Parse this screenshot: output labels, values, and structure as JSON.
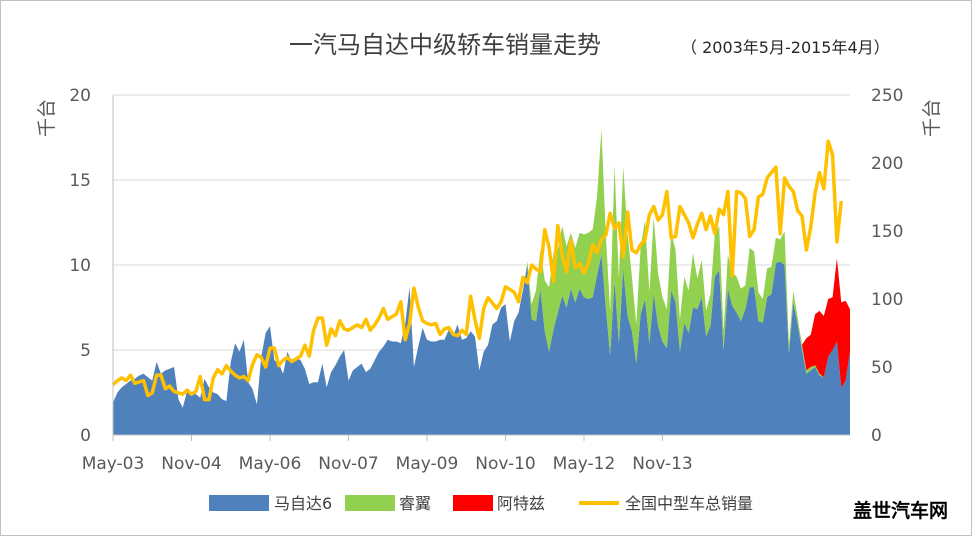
{
  "chart_data": {
    "type": "area",
    "title": "一汽马自达中级轿车销量走势",
    "subtitle": "（ 2003年5月-2015年4月）",
    "left_axis": {
      "unit": "千台",
      "ticks": [
        "0",
        "5",
        "10",
        "15",
        "20"
      ],
      "range": [
        0,
        20
      ]
    },
    "right_axis": {
      "unit": "千台",
      "ticks": [
        "0",
        "50",
        "100",
        "150",
        "200",
        "250"
      ],
      "range": [
        0,
        250
      ]
    },
    "x_labels": [
      "May-03",
      "Nov-04",
      "May-06",
      "Nov-07",
      "May-09",
      "Nov-10",
      "May-12",
      "Nov-13"
    ],
    "grid": true,
    "legend_position": "bottom",
    "series": [
      {
        "name": "马自达6",
        "chart": "stacked-area",
        "axis": "left",
        "color": "#4f81bd",
        "values": [
          1.9,
          2.5,
          2.8,
          3.0,
          3.2,
          3.3,
          3.5,
          3.6,
          3.4,
          3.2,
          4.3,
          3.6,
          3.8,
          3.9,
          4.0,
          2.1,
          1.6,
          2.6,
          2.5,
          2.4,
          2.2,
          3.3,
          2.8,
          2.5,
          2.4,
          2.1,
          2.0,
          4.3,
          5.4,
          4.9,
          5.6,
          3.1,
          2.7,
          1.8,
          4.6,
          6.0,
          6.4,
          4.4,
          4.2,
          3.6,
          4.9,
          4.3,
          4.6,
          4.4,
          3.9,
          3.0,
          3.1,
          3.1,
          4.2,
          2.8,
          3.7,
          4.1,
          4.6,
          5.0,
          3.2,
          3.8,
          4.0,
          4.2,
          3.7,
          3.9,
          4.4,
          4.9,
          5.2,
          5.6,
          5.5,
          5.5,
          5.4,
          6.5,
          8.7,
          4.0,
          5.2,
          6.3,
          5.6,
          5.5,
          5.5,
          5.6,
          5.6,
          6.2,
          5.8,
          6.5,
          5.6,
          5.7,
          6.1,
          5.8,
          3.8,
          4.9,
          5.3,
          6.5,
          6.7,
          7.5,
          7.7,
          5.5,
          6.7,
          7.2,
          8.5,
          10.0,
          6.8,
          6.7,
          8.6,
          6.1,
          4.9,
          6.2,
          7.2,
          8.2,
          7.5,
          8.6,
          7.8,
          8.6,
          8.1,
          8.0,
          8.1,
          9.4,
          10.6,
          7.5,
          4.7,
          9.1,
          5.4,
          9.8,
          7.0,
          6.1,
          4.2,
          7.1,
          8.0,
          5.4,
          8.3,
          6.4,
          5.5,
          5.1,
          8.5,
          7.8,
          4.9,
          6.6,
          6.0,
          7.5,
          7.4,
          8.1,
          5.8,
          6.4,
          9.3,
          9.7,
          5.0,
          8.6,
          7.6,
          7.2,
          6.7,
          7.4,
          8.7,
          8.7,
          6.7,
          6.6,
          8.1,
          8.3,
          10.1,
          10.2,
          10.0,
          4.8,
          7.8,
          6.5,
          5.0,
          3.6,
          3.8,
          4.0,
          3.5,
          3.4,
          4.6,
          5.0,
          5.5,
          2.8,
          3.2,
          4.9
        ]
      },
      {
        "name": "睿翼",
        "chart": "stacked-area",
        "axis": "left",
        "color": "#92d050",
        "values": [
          0,
          0,
          0,
          0,
          0,
          0,
          0,
          0,
          0,
          0,
          0,
          0,
          0,
          0,
          0,
          0,
          0,
          0,
          0,
          0,
          0,
          0,
          0,
          0,
          0,
          0,
          0,
          0,
          0,
          0,
          0,
          0,
          0,
          0,
          0,
          0,
          0,
          0,
          0,
          0,
          0,
          0,
          0,
          0,
          0,
          0,
          0,
          0,
          0,
          0,
          0,
          0,
          0,
          0,
          0,
          0,
          0,
          0,
          0,
          0,
          0,
          0,
          0,
          0,
          0,
          0,
          0,
          0,
          0,
          0,
          0,
          0,
          0,
          0,
          0,
          0,
          0,
          0,
          0,
          0,
          0,
          0,
          0,
          0,
          0,
          0,
          0,
          0,
          0,
          0,
          0,
          0,
          0,
          0,
          0,
          0.2,
          0.9,
          1.8,
          2.3,
          3.0,
          3.8,
          4.5,
          3.7,
          4.1,
          3.6,
          3.3,
          3.2,
          3.3,
          3.7,
          3.9,
          4.0,
          4.6,
          7.4,
          4.3,
          2.6,
          6.8,
          3.8,
          6.0,
          4.8,
          3.2,
          2.3,
          4.0,
          4.6,
          3.0,
          4.5,
          3.1,
          2.6,
          2.3,
          3.4,
          3.1,
          1.9,
          2.7,
          2.5,
          3.2,
          1.8,
          2.2,
          1.5,
          1.9,
          2.5,
          2.6,
          1.1,
          2.0,
          2.0,
          2.1,
          1.9,
          1.4,
          2.3,
          2.1,
          1.7,
          1.4,
          1.7,
          1.6,
          1.5,
          1.3,
          2.0,
          0.5,
          0.7,
          0.4,
          0.3,
          0.2,
          0.2,
          0.1,
          0.1,
          0,
          0,
          0,
          0,
          0,
          0,
          0
        ]
      },
      {
        "name": "阿特兹",
        "chart": "stacked-area",
        "axis": "left",
        "color": "#ff0000",
        "values": [
          0,
          0,
          0,
          0,
          0,
          0,
          0,
          0,
          0,
          0,
          0,
          0,
          0,
          0,
          0,
          0,
          0,
          0,
          0,
          0,
          0,
          0,
          0,
          0,
          0,
          0,
          0,
          0,
          0,
          0,
          0,
          0,
          0,
          0,
          0,
          0,
          0,
          0,
          0,
          0,
          0,
          0,
          0,
          0,
          0,
          0,
          0,
          0,
          0,
          0,
          0,
          0,
          0,
          0,
          0,
          0,
          0,
          0,
          0,
          0,
          0,
          0,
          0,
          0,
          0,
          0,
          0,
          0,
          0,
          0,
          0,
          0,
          0,
          0,
          0,
          0,
          0,
          0,
          0,
          0,
          0,
          0,
          0,
          0,
          0,
          0,
          0,
          0,
          0,
          0,
          0,
          0,
          0,
          0,
          0,
          0,
          0,
          0,
          0,
          0,
          0,
          0,
          0,
          0,
          0,
          0,
          0,
          0,
          0,
          0,
          0,
          0,
          0,
          0,
          0,
          0,
          0,
          0,
          0,
          0,
          0,
          0,
          0,
          0,
          0,
          0,
          0,
          0,
          0,
          0,
          0,
          0,
          0,
          0,
          0,
          0,
          0,
          0,
          0,
          0,
          0,
          0,
          0,
          0,
          0,
          0,
          0,
          0,
          0,
          0,
          0,
          0,
          0,
          0,
          0,
          0,
          0,
          0,
          0,
          1.9,
          1.9,
          3.0,
          3.7,
          3.6,
          3.4,
          3.1,
          4.9,
          5.0,
          4.7,
          2.5,
          2.7,
          2.4
        ]
      },
      {
        "name": "全国中型车总销量",
        "chart": "line",
        "axis": "right",
        "color": "#ffc000",
        "values": [
          37,
          40,
          42,
          40,
          44,
          38,
          39,
          40,
          29,
          31,
          44,
          44,
          34,
          36,
          32,
          31,
          30,
          33,
          30,
          32,
          43,
          26,
          26,
          42,
          48,
          45,
          51,
          47,
          44,
          42,
          43,
          40,
          52,
          59,
          57,
          50,
          64,
          64,
          51,
          55,
          57,
          54,
          56,
          58,
          66,
          58,
          77,
          86,
          86,
          66,
          78,
          73,
          84,
          78,
          77,
          79,
          81,
          79,
          85,
          77,
          81,
          86,
          93,
          85,
          87,
          89,
          98,
          70,
          82,
          108,
          94,
          84,
          82,
          81,
          82,
          74,
          78,
          79,
          74,
          73,
          77,
          74,
          102,
          85,
          71,
          93,
          101,
          97,
          93,
          98,
          109,
          107,
          105,
          98,
          116,
          112,
          125,
          122,
          120,
          151,
          138,
          113,
          154,
          132,
          120,
          143,
          123,
          126,
          119,
          126,
          140,
          134,
          144,
          147,
          163,
          152,
          156,
          131,
          164,
          136,
          134,
          140,
          144,
          162,
          168,
          158,
          162,
          179,
          145,
          146,
          168,
          162,
          156,
          145,
          155,
          163,
          151,
          161,
          148,
          166,
          162,
          179,
          117,
          179,
          178,
          174,
          146,
          151,
          175,
          177,
          189,
          193,
          197,
          148,
          189,
          183,
          179,
          165,
          161,
          136,
          153,
          178,
          193,
          181,
          216,
          206,
          142,
          172
        ]
      }
    ]
  },
  "legend": {
    "items": [
      "马自达6",
      "睿翼",
      "阿特兹",
      "全国中型车总销量"
    ]
  },
  "watermark": "盖世汽车网",
  "colors": {
    "axis": "#bfbfbf",
    "grid": "#d9d9d9",
    "text": "#595959"
  }
}
